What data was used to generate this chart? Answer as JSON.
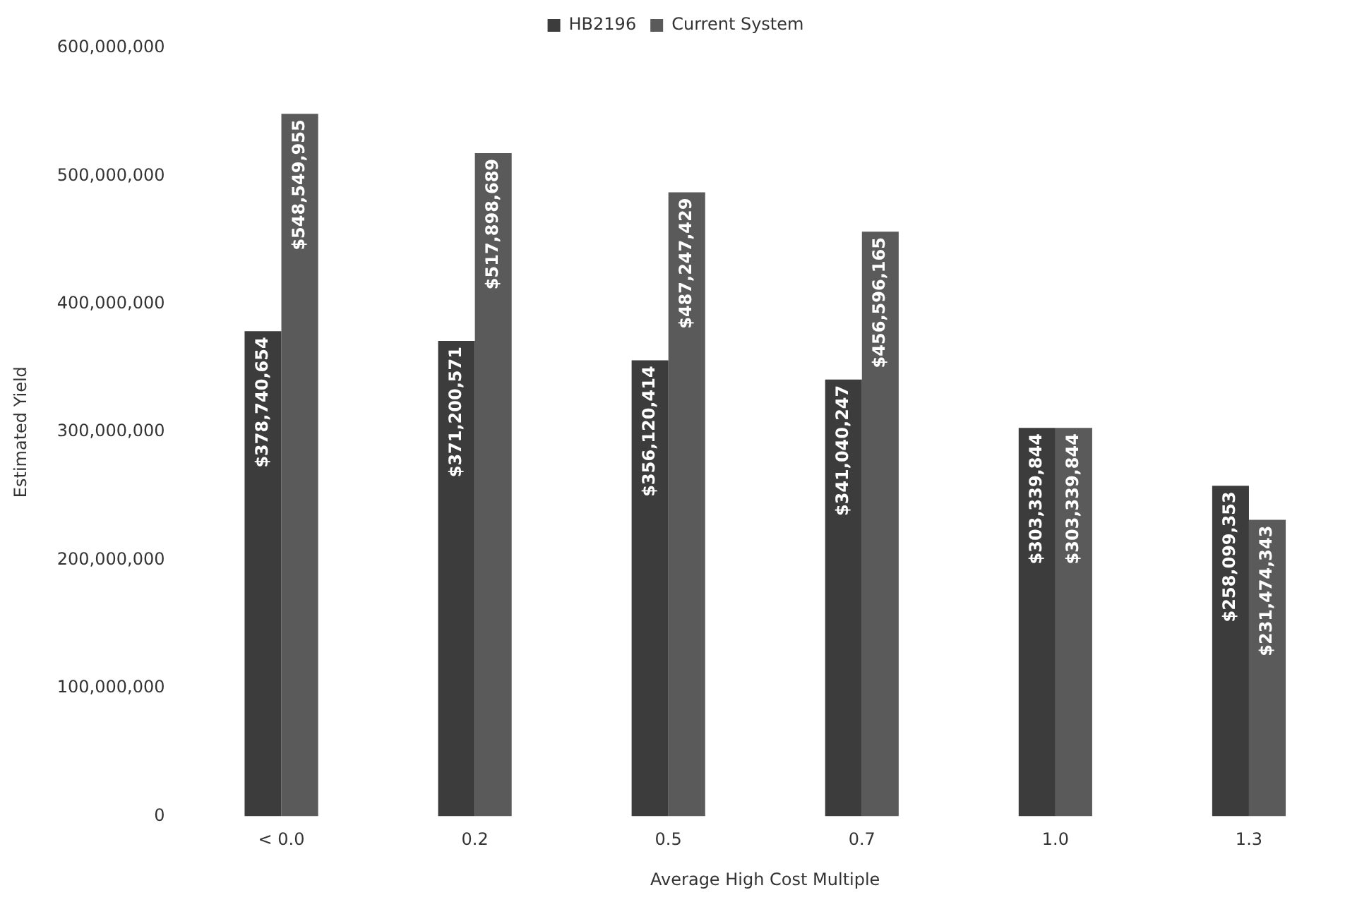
{
  "chart_data": {
    "type": "bar",
    "xlabel": "Average High Cost Multiple",
    "ylabel": "Estimated Yield",
    "categories": [
      "< 0.0",
      "0.2",
      "0.5",
      "0.7",
      "1.0",
      "1.3"
    ],
    "series": [
      {
        "name": "HB2196",
        "color": "#3c3c3c",
        "values": [
          378740654,
          371200571,
          356120414,
          341040247,
          303339844,
          258099353
        ],
        "value_labels": [
          "$378,740,654",
          "$371,200,571",
          "$356,120,414",
          "$341,040,247",
          "$303,339,844",
          "$258,099,353"
        ]
      },
      {
        "name": "Current System",
        "color": "#5a5a5a",
        "values": [
          548549955,
          517898689,
          487247429,
          456596165,
          303339844,
          231474343
        ],
        "value_labels": [
          "$548,549,955",
          "$517,898,689",
          "$487,247,429",
          "$456,596,165",
          "$303,339,844",
          "$231,474,343"
        ]
      }
    ],
    "ylim": [
      0,
      600000000
    ],
    "yticks": [
      0,
      {
        "value": 100000000,
        "label": "100,000,000"
      },
      {
        "value": 200000000,
        "label": "200,000,000"
      },
      {
        "value": 300000000,
        "label": "300,000,000"
      },
      {
        "value": 400000000,
        "label": "400,000,000"
      },
      {
        "value": 500000000,
        "label": "500,000,000"
      },
      {
        "value": 600000000,
        "label": "600,000,000"
      }
    ],
    "grid": false,
    "legend": "top"
  }
}
